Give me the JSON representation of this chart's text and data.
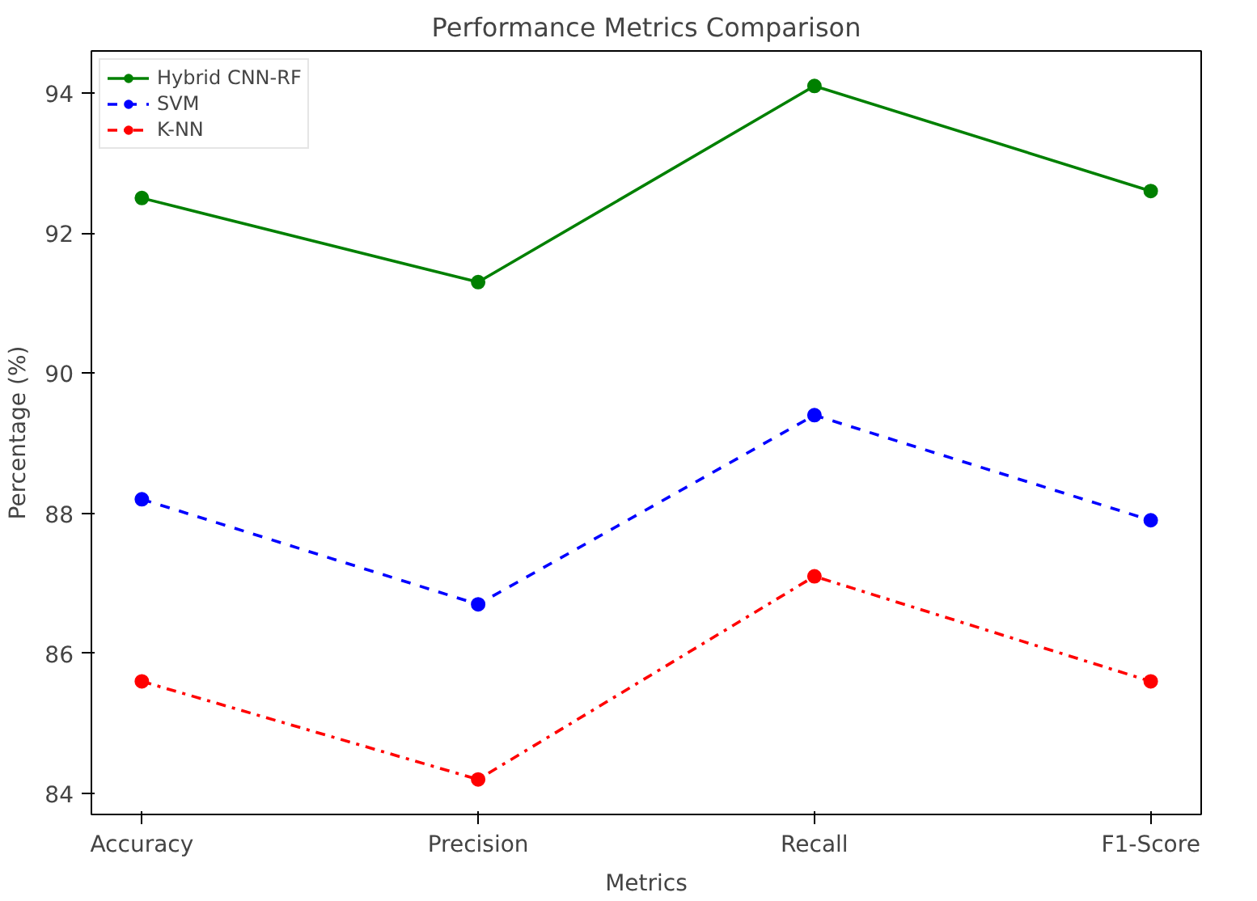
{
  "chart_data": {
    "type": "line",
    "title": "Performance Metrics Comparison",
    "xlabel": "Metrics",
    "ylabel": "Percentage (%)",
    "categories": [
      "Accuracy",
      "Precision",
      "Recall",
      "F1-Score"
    ],
    "series": [
      {
        "name": "Hybrid CNN-RF",
        "color": "#008000",
        "values": [
          92.5,
          91.3,
          94.1,
          92.6
        ],
        "line_style": "solid"
      },
      {
        "name": "SVM",
        "color": "#0000ff",
        "values": [
          88.2,
          86.7,
          89.4,
          87.9
        ],
        "line_style": "dashed"
      },
      {
        "name": "K-NN",
        "color": "#ff0000",
        "values": [
          85.6,
          84.2,
          87.1,
          85.6
        ],
        "line_style": "dashdot"
      }
    ],
    "ylim": [
      83.7,
      94.6
    ],
    "yticks": [
      84,
      86,
      88,
      90,
      92,
      94
    ],
    "grid": false,
    "legend": "top left",
    "marker": "circle"
  }
}
